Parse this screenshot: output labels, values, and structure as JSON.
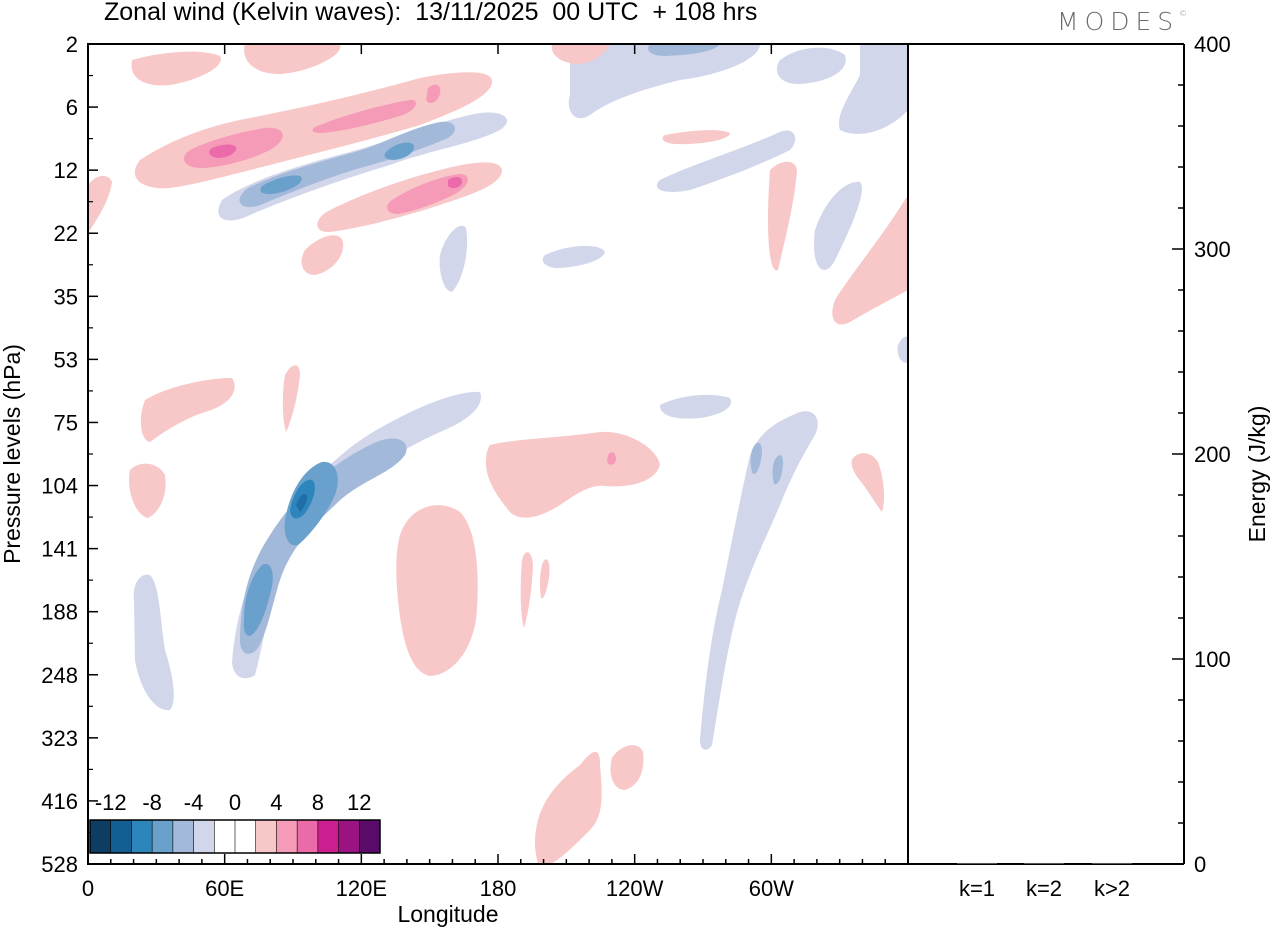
{
  "title": "Zonal wind (Kelvin waves):  13/11/2025  00 UTC  + 108 hrs",
  "logo": "MODES",
  "logo_mark": "©",
  "chart_data": [
    {
      "type": "heatmap",
      "description": "Longitude–pressure cross-section of Kelvin-wave zonal wind anomaly (m/s)",
      "xlabel": "Longitude",
      "ylabel": "Pressure levels (hPa)",
      "x_ticks": [
        "0",
        "60E",
        "120E",
        "180",
        "120W",
        "60W"
      ],
      "x_tick_degrees": [
        0,
        60,
        120,
        180,
        240,
        300
      ],
      "xlim": [
        0,
        360
      ],
      "y_ticks": [
        2,
        6,
        12,
        22,
        35,
        53,
        75,
        104,
        141,
        188,
        248,
        323,
        416,
        528
      ],
      "ylim": [
        2,
        528
      ],
      "colorbar": {
        "labels": [
          "-12",
          "-8",
          "-4",
          "0",
          "4",
          "8",
          "12"
        ],
        "colors": [
          "#0d3d63",
          "#135f91",
          "#2c86bc",
          "#6aa1cc",
          "#a2b9da",
          "#d2d6ea",
          "#ffffff",
          "#ffffff",
          "#f8c8c8",
          "#f59ab7",
          "#ea6aaa",
          "#cc1f8f",
          "#9b1283",
          "#5a0b6a"
        ]
      },
      "features": [
        {
          "sign": "negative",
          "lon": [
            62,
            172
          ],
          "level_hPa": [
            7,
            17
          ],
          "peak": -9
        },
        {
          "sign": "positive",
          "lon": [
            26,
            178
          ],
          "level_hPa": [
            4,
            13
          ],
          "peak": 9
        },
        {
          "sign": "positive",
          "lon": [
            112,
            180
          ],
          "level_hPa": [
            11,
            24
          ],
          "peak": 9
        },
        {
          "sign": "negative",
          "lon": [
            62,
            172
          ],
          "level_hPa": [
            70,
            260
          ],
          "peak": -11
        },
        {
          "sign": "positive",
          "lon": [
            140,
            170
          ],
          "level_hPa": [
            120,
            248
          ],
          "peak": 3
        },
        {
          "sign": "positive",
          "lon": [
            175,
            252
          ],
          "level_hPa": [
            85,
            118
          ],
          "peak": 5
        },
        {
          "sign": "negative",
          "lon": [
            268,
            322
          ],
          "level_hPa": [
            80,
            330
          ],
          "peak": -7
        },
        {
          "sign": "negative",
          "lon": [
            18,
            40
          ],
          "level_hPa": [
            160,
            250
          ],
          "peak": -3
        },
        {
          "sign": "positive",
          "lon": [
            198,
            230
          ],
          "level_hPa": [
            330,
            528
          ],
          "peak": 3
        }
      ]
    },
    {
      "type": "bar",
      "categories": [
        "k=1",
        "k=2",
        "k>2"
      ],
      "values": [
        0.5,
        0.5,
        0.5
      ],
      "ylabel": "Energy (J/kg)",
      "ylim": [
        0,
        400
      ],
      "y_ticks": [
        0,
        100,
        200,
        300,
        400
      ]
    }
  ],
  "colors": {
    "neg_strong": "#1f6ea8",
    "neg_mid": "#6aa1cc",
    "neg_light": "#a2b9da",
    "neg_faint": "#d2d6ea",
    "pos_faint": "#f8c8c8",
    "pos_light": "#f59ab7",
    "pos_mid": "#ea6aaa",
    "pos_strong": "#cc1f8f"
  }
}
